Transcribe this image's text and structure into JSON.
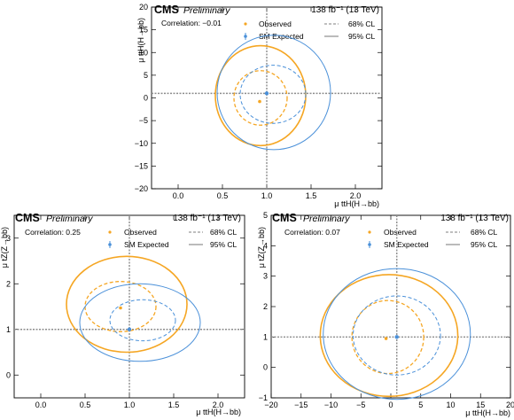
{
  "colors": {
    "observed": "#f5a623",
    "expected": "#4a90d9",
    "reference": "#8c8c8c"
  },
  "chart_data": [
    {
      "type": "scatter",
      "cms": "CMS",
      "preliminary": "Preliminary",
      "lumi": "138 fb⁻¹ (13 TeV)",
      "correlation": "Correlation: −0.01",
      "xlabel": "μ ttH(H→bb)",
      "ylabel": "μ ttH(H→bb)",
      "xlim": [
        -0.3,
        2.3
      ],
      "ylim": [
        -20,
        20
      ],
      "xticks": [
        "0.0",
        "0.5",
        "1.0",
        "1.5",
        "2.0"
      ],
      "xtick_values": [
        0,
        0.5,
        1,
        1.5,
        2
      ],
      "yticks": [
        "−20",
        "−15",
        "−10",
        "−5",
        "0",
        "5",
        "10",
        "15",
        "20"
      ],
      "ytick_values": [
        -20,
        -15,
        -10,
        -5,
        0,
        5,
        10,
        15,
        20
      ],
      "legend": {
        "observed": "Observed",
        "expected": "SM Expected",
        "cl68": "68% CL",
        "cl95": "95% CL"
      },
      "observed_point": [
        0.92,
        -0.8
      ],
      "expected_point": [
        1.0,
        1.0
      ],
      "contours": [
        {
          "series": "observed",
          "cl": "68%",
          "cx": 0.93,
          "cy": 0.0,
          "rx": 0.3,
          "ry": 6.0
        },
        {
          "series": "observed",
          "cl": "95%",
          "cx": 0.93,
          "cy": 0.5,
          "rx": 0.51,
          "ry": 11.0
        },
        {
          "series": "expected",
          "cl": "68%",
          "cx": 1.07,
          "cy": 0.8,
          "rx": 0.37,
          "ry": 6.4
        },
        {
          "series": "expected",
          "cl": "95%",
          "cx": 1.08,
          "cy": 1.2,
          "rx": 0.64,
          "ry": 12.6
        }
      ]
    },
    {
      "type": "scatter",
      "cms": "CMS",
      "preliminary": "Preliminary",
      "lumi": "138 fb⁻¹ (13 TeV)",
      "correlation": "Correlation: 0.25",
      "xlabel": "μ ttH(H→bb)",
      "ylabel": "μ tZ(Z→bb)",
      "xlim": [
        -0.3,
        2.3
      ],
      "ylim": [
        -0.5,
        3.5
      ],
      "xticks": [
        "0.0",
        "0.5",
        "1.0",
        "1.5",
        "2.0"
      ],
      "xtick_values": [
        0,
        0.5,
        1,
        1.5,
        2
      ],
      "yticks": [
        "0",
        "1",
        "2",
        "3"
      ],
      "ytick_values": [
        0,
        1,
        2,
        3
      ],
      "legend": {
        "observed": "Observed",
        "expected": "SM Expected",
        "cl68": "68% CL",
        "cl95": "95% CL"
      },
      "observed_point": [
        0.9,
        1.47
      ],
      "expected_point": [
        1.0,
        1.0
      ],
      "contours": [
        {
          "series": "observed",
          "cl": "68%",
          "cx": 0.9,
          "cy": 1.5,
          "rx": 0.4,
          "ry": 0.55
        },
        {
          "series": "observed",
          "cl": "95%",
          "cx": 0.97,
          "cy": 1.55,
          "rx": 0.68,
          "ry": 1.05
        },
        {
          "series": "expected",
          "cl": "68%",
          "cx": 1.15,
          "cy": 1.2,
          "rx": 0.37,
          "ry": 0.45
        },
        {
          "series": "expected",
          "cl": "95%",
          "cx": 1.12,
          "cy": 1.15,
          "rx": 0.68,
          "ry": 0.85
        }
      ]
    },
    {
      "type": "scatter",
      "cms": "CMS",
      "preliminary": "Preliminary",
      "lumi": "138 fb⁻¹ (13 TeV)",
      "correlation": "Correlation: 0.07",
      "xlabel": "μ ttH(H→bb)",
      "ylabel": "μ tZ(Z→bb)",
      "xlim": [
        -20,
        20
      ],
      "ylim": [
        -1,
        5
      ],
      "xticks": [
        "−20",
        "−15",
        "−10",
        "−5",
        "0",
        "5",
        "10",
        "15",
        "20"
      ],
      "xtick_values": [
        -20,
        -15,
        -10,
        -5,
        0,
        5,
        10,
        15,
        20
      ],
      "yticks": [
        "−1",
        "0",
        "1",
        "2",
        "3",
        "4",
        "5"
      ],
      "ytick_values": [
        -1,
        0,
        1,
        2,
        3,
        4,
        5
      ],
      "legend": {
        "observed": "Observed",
        "expected": "SM Expected",
        "cl68": "68% CL",
        "cl95": "95% CL"
      },
      "observed_point": [
        -0.8,
        0.95
      ],
      "expected_point": [
        1.0,
        1.0
      ],
      "contours": [
        {
          "series": "observed",
          "cl": "68%",
          "cx": -0.5,
          "cy": 1.0,
          "rx": 6.0,
          "ry": 1.2
        },
        {
          "series": "observed",
          "cl": "95%",
          "cx": -0.3,
          "cy": 1.05,
          "rx": 11.5,
          "ry": 2.0
        },
        {
          "series": "expected",
          "cl": "68%",
          "cx": 1.0,
          "cy": 1.05,
          "rx": 7.3,
          "ry": 1.3
        },
        {
          "series": "expected",
          "cl": "95%",
          "cx": 1.0,
          "cy": 1.1,
          "rx": 12.3,
          "ry": 2.15
        }
      ]
    }
  ]
}
